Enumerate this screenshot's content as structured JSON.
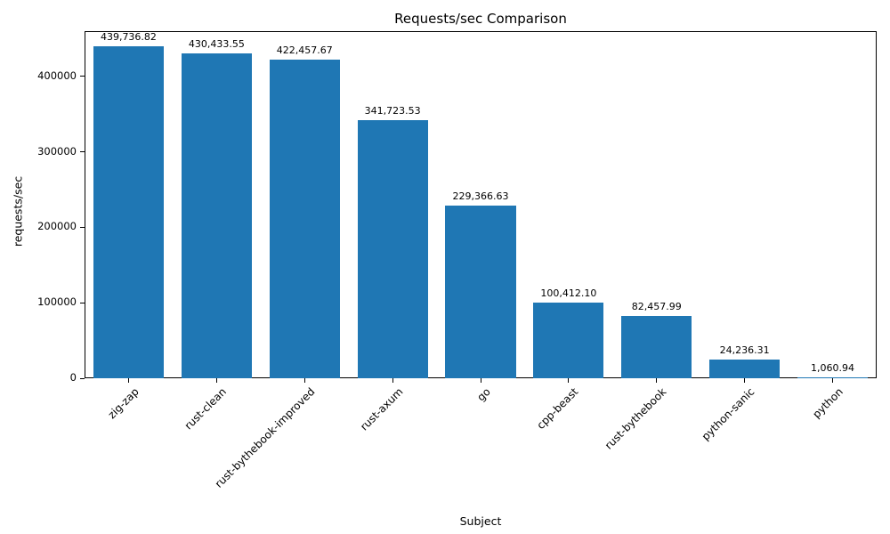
{
  "chart_data": {
    "type": "bar",
    "title": "Requests/sec Comparison",
    "xlabel": "Subject",
    "ylabel": "requests/sec",
    "categories": [
      "zig-zap",
      "rust-clean",
      "rust-bythebook-improved",
      "rust-axum",
      "go",
      "cpp-beast",
      "rust-bythebook",
      "python-sanic",
      "python"
    ],
    "values": [
      439736.82,
      430433.55,
      422457.67,
      341723.53,
      229366.63,
      100412.1,
      82457.99,
      24236.31,
      1060.94
    ],
    "value_labels": [
      "439,736.82",
      "430,433.55",
      "422,457.67",
      "341,723.53",
      "229,366.63",
      "100,412.10",
      "82,457.99",
      "24,236.31",
      "1,060.94"
    ],
    "ylim": [
      0,
      460000
    ],
    "yticks": [
      0,
      100000,
      200000,
      300000,
      400000
    ],
    "ytick_labels": [
      "0",
      "100000",
      "200000",
      "300000",
      "400000"
    ],
    "bar_color": "#1f77b4",
    "grid": false,
    "legend": "none"
  }
}
